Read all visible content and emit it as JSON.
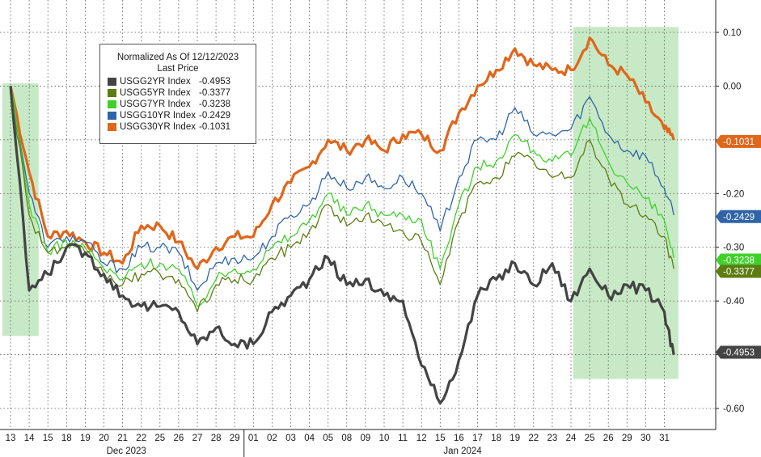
{
  "chart_data": {
    "type": "line",
    "y_ticks": [
      "0.10",
      "0.00",
      "-0.10",
      "-0.20",
      "-0.30",
      "-0.40",
      "-0.50",
      "-0.60"
    ],
    "y_tick_values": [
      0.1,
      0.0,
      -0.1,
      -0.2,
      -0.3,
      -0.4,
      -0.5,
      -0.6
    ],
    "ylim": [
      -0.64,
      0.14
    ],
    "x_day_labels": [
      "13",
      "14",
      "15",
      "18",
      "19",
      "20",
      "21",
      "22",
      "25",
      "26",
      "27",
      "28",
      "29",
      "01",
      "02",
      "03",
      "04",
      "05",
      "08",
      "09",
      "10",
      "11",
      "12",
      "15",
      "16",
      "17",
      "18",
      "19",
      "22",
      "23",
      "24",
      "25",
      "26",
      "29",
      "30",
      "31"
    ],
    "x_month_labels": [
      "Dec 2023",
      "Jan 2024"
    ],
    "grid": true,
    "legend": {
      "title": "Normalized As Of 12/12/2023",
      "subtitle": "Last Price",
      "position": "top-left",
      "entries": [
        {
          "name": "USGG2YR Index",
          "value": "-0.4953",
          "color": "#444444"
        },
        {
          "name": "USGG5YR Index",
          "value": "-0.3377",
          "color": "#5d7d12"
        },
        {
          "name": "USGG7YR Index",
          "value": "-0.3238",
          "color": "#3fd12a"
        },
        {
          "name": "USGG10YR Index",
          "value": "-0.2429",
          "color": "#2f65a8"
        },
        {
          "name": "USGG30YR Index",
          "value": "-0.1031",
          "color": "#e0661a"
        }
      ]
    },
    "last_value_tags": [
      {
        "label": "-0.1031",
        "color": "#e0661a",
        "y": -0.1031
      },
      {
        "label": "-0.2429",
        "color": "#2f65a8",
        "y": -0.2429
      },
      {
        "label": "-0.3238",
        "color": "#3fd12a",
        "y": -0.3238
      },
      {
        "label": "-0.3377",
        "color": "#5d7d12",
        "y": -0.3377
      },
      {
        "label": "-0.4953",
        "color": "#444444",
        "y": -0.4953
      }
    ],
    "shaded_regions": [
      {
        "from_day": 0,
        "to_day": 1.5,
        "y_top": 0.005,
        "y_bottom": -0.465
      },
      {
        "from_day": 30.55,
        "to_day": 35.75,
        "y_top": 0.11,
        "y_bottom": -0.545
      }
    ],
    "x_day_index": [
      0,
      1,
      2,
      3,
      4,
      5,
      6,
      7,
      8,
      9,
      10,
      11,
      12,
      13,
      14,
      15,
      16,
      17,
      18,
      19,
      20,
      21,
      22,
      23,
      24,
      25,
      26,
      27,
      28,
      29,
      30,
      31,
      32,
      33,
      34,
      35,
      35.5
    ],
    "series": [
      {
        "name": "USGG30YR Index",
        "color": "#e0661a",
        "values": [
          0.0,
          -0.16,
          -0.28,
          -0.27,
          -0.29,
          -0.31,
          -0.33,
          -0.26,
          -0.26,
          -0.29,
          -0.34,
          -0.3,
          -0.28,
          -0.28,
          -0.22,
          -0.18,
          -0.15,
          -0.1,
          -0.12,
          -0.1,
          -0.12,
          -0.09,
          -0.09,
          -0.12,
          -0.05,
          0.0,
          0.03,
          0.07,
          0.04,
          0.03,
          0.03,
          0.09,
          0.04,
          0.02,
          -0.03,
          -0.08,
          -0.1
        ]
      },
      {
        "name": "USGG10YR Index",
        "color": "#2f65a8",
        "values": [
          0.0,
          -0.2,
          -0.3,
          -0.28,
          -0.29,
          -0.33,
          -0.34,
          -0.3,
          -0.3,
          -0.31,
          -0.38,
          -0.33,
          -0.32,
          -0.32,
          -0.28,
          -0.24,
          -0.22,
          -0.16,
          -0.19,
          -0.17,
          -0.19,
          -0.17,
          -0.2,
          -0.27,
          -0.17,
          -0.1,
          -0.1,
          -0.04,
          -0.09,
          -0.09,
          -0.08,
          -0.02,
          -0.09,
          -0.12,
          -0.13,
          -0.19,
          -0.24
        ]
      },
      {
        "name": "USGG7YR Index",
        "color": "#3fd12a",
        "values": [
          0.0,
          -0.22,
          -0.31,
          -0.29,
          -0.3,
          -0.34,
          -0.36,
          -0.33,
          -0.33,
          -0.34,
          -0.41,
          -0.36,
          -0.34,
          -0.34,
          -0.3,
          -0.28,
          -0.25,
          -0.2,
          -0.24,
          -0.22,
          -0.24,
          -0.24,
          -0.25,
          -0.34,
          -0.22,
          -0.15,
          -0.14,
          -0.09,
          -0.12,
          -0.14,
          -0.13,
          -0.06,
          -0.14,
          -0.18,
          -0.21,
          -0.25,
          -0.32
        ]
      },
      {
        "name": "USGG5YR Index",
        "color": "#5d7d12",
        "values": [
          0.0,
          -0.24,
          -0.31,
          -0.3,
          -0.31,
          -0.35,
          -0.37,
          -0.35,
          -0.35,
          -0.36,
          -0.42,
          -0.37,
          -0.36,
          -0.36,
          -0.32,
          -0.3,
          -0.27,
          -0.22,
          -0.26,
          -0.24,
          -0.26,
          -0.27,
          -0.29,
          -0.37,
          -0.25,
          -0.18,
          -0.17,
          -0.13,
          -0.14,
          -0.17,
          -0.17,
          -0.1,
          -0.17,
          -0.22,
          -0.24,
          -0.28,
          -0.34
        ]
      },
      {
        "name": "USGG2YR Index",
        "color": "#444444",
        "values": [
          0.0,
          -0.38,
          -0.35,
          -0.3,
          -0.31,
          -0.35,
          -0.39,
          -0.41,
          -0.41,
          -0.42,
          -0.48,
          -0.45,
          -0.48,
          -0.48,
          -0.42,
          -0.39,
          -0.36,
          -0.32,
          -0.37,
          -0.36,
          -0.39,
          -0.4,
          -0.52,
          -0.59,
          -0.51,
          -0.39,
          -0.36,
          -0.33,
          -0.37,
          -0.33,
          -0.4,
          -0.34,
          -0.39,
          -0.37,
          -0.38,
          -0.42,
          -0.5
        ]
      }
    ]
  }
}
